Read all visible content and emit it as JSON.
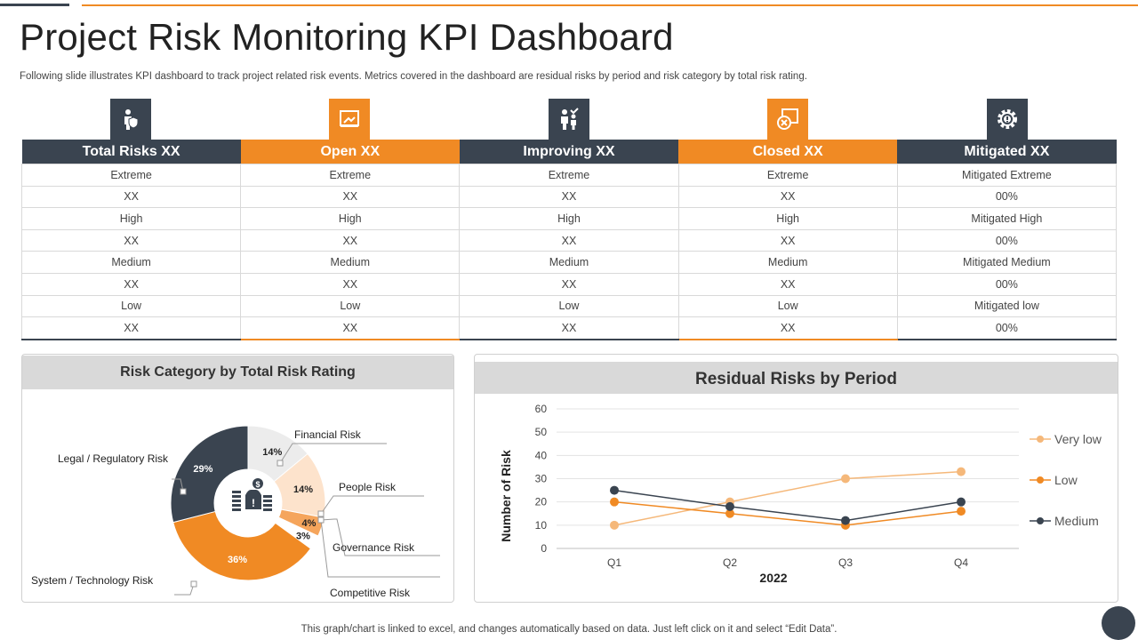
{
  "header": {
    "title": "Project Risk Monitoring KPI Dashboard",
    "subtitle": "Following slide illustrates KPI dashboard to track project related risk events. Metrics covered in the dashboard are residual risks by period and risk category by total risk rating."
  },
  "kpi_table": {
    "columns": [
      {
        "label": "Total Risks XX",
        "icon": "user-shield-icon",
        "color": "#3a4450"
      },
      {
        "label": "Open XX",
        "icon": "open-folder-icon",
        "color": "#f08a24"
      },
      {
        "label": "Improving XX",
        "icon": "improving-people-icon",
        "color": "#3a4450"
      },
      {
        "label": "Closed  XX",
        "icon": "closed-x-icon",
        "color": "#f08a24"
      },
      {
        "label": "Mitigated XX",
        "icon": "gear-icon",
        "color": "#3a4450"
      }
    ],
    "rows": [
      [
        "Extreme",
        "Extreme",
        "Extreme",
        "Extreme",
        "Mitigated Extreme"
      ],
      [
        "XX",
        "XX",
        "XX",
        "XX",
        "00%"
      ],
      [
        "High",
        "High",
        "High",
        "High",
        "Mitigated  High"
      ],
      [
        "XX",
        "XX",
        "XX",
        "XX",
        "00%"
      ],
      [
        "Medium",
        "Medium",
        "Medium",
        "Medium",
        "Mitigated Medium"
      ],
      [
        "XX",
        "XX",
        "XX",
        "XX",
        "00%"
      ],
      [
        "Low",
        "Low",
        "Low",
        "Low",
        "Mitigated low"
      ],
      [
        "XX",
        "XX",
        "XX",
        "XX",
        "00%"
      ]
    ]
  },
  "donut_panel": {
    "title": "Risk Category by Total Risk Rating"
  },
  "line_panel": {
    "title": "Residual Risks by Period"
  },
  "chart_data": [
    {
      "type": "pie",
      "title": "Risk Category by Total Risk Rating",
      "slices": [
        {
          "label": "Financial Risk",
          "value": 14,
          "display": "14%",
          "color": "#ececec"
        },
        {
          "label": "People Risk",
          "value": 14,
          "display": "14%",
          "color": "#fde3cc"
        },
        {
          "label": "Governance Risk",
          "value": 4,
          "display": "4%",
          "color": "#f5a55c"
        },
        {
          "label": "Competitive Risk",
          "value": 3,
          "display": "3%",
          "color": "#ffffff"
        },
        {
          "label": "System / Technology Risk",
          "value": 36,
          "display": "36%",
          "color": "#f08a24"
        },
        {
          "label": "Legal / Regulatory Risk",
          "value": 29,
          "display": "29%",
          "color": "#3a4450"
        }
      ]
    },
    {
      "type": "line",
      "title": "Residual Risks by Period",
      "categories": [
        "Q1",
        "Q2",
        "Q3",
        "Q4"
      ],
      "xlabel": "2022",
      "ylabel": "Number of Risk",
      "ylim": [
        0,
        60
      ],
      "yticks": [
        0,
        10,
        20,
        30,
        40,
        50,
        60
      ],
      "series": [
        {
          "name": "Very low",
          "values": [
            10,
            20,
            30,
            33
          ],
          "color": "#f5b87a"
        },
        {
          "name": "Low",
          "values": [
            20,
            15,
            10,
            16
          ],
          "color": "#f08a24"
        },
        {
          "name": "Medium",
          "values": [
            25,
            18,
            12,
            20
          ],
          "color": "#3a4450"
        }
      ]
    }
  ],
  "footer": {
    "text": "This graph/chart is linked to excel,  and changes automatically based on data. Just left click on it and select “Edit Data”."
  }
}
